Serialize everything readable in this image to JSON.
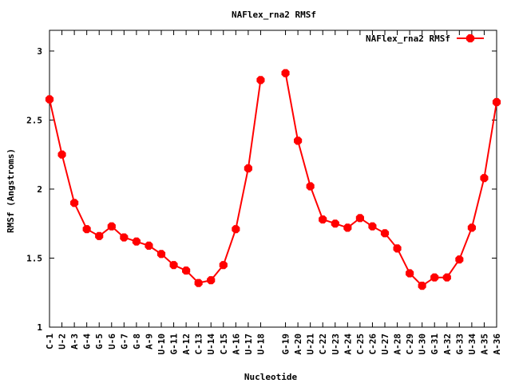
{
  "chart_data": {
    "type": "line",
    "title": "NAFlex_rna2 RMSf",
    "xlabel": "Nucleotide",
    "ylabel": "RMSf (Angstroms)",
    "ylim": [
      1,
      3.15
    ],
    "yticks": [
      "1",
      "1.5",
      "2",
      "2.5",
      "3"
    ],
    "legend": {
      "position": "top-right",
      "label": "NAFlex_rna2 RMSf"
    },
    "color": "#ff0000",
    "series": [
      {
        "name": "NAFlex_rna2 RMSf",
        "segments": [
          {
            "labels": [
              "C-1",
              "U-2",
              "A-3",
              "G-4",
              "G-5",
              "U-6",
              "G-7",
              "G-8",
              "A-9",
              "U-10",
              "G-11",
              "A-12",
              "C-13",
              "U-14",
              "C-15",
              "A-16",
              "U-17",
              "U-18"
            ],
            "x": [
              1,
              2,
              3,
              4,
              5,
              6,
              7,
              8,
              9,
              10,
              11,
              12,
              13,
              14,
              15,
              16,
              17,
              18
            ],
            "values": [
              2.65,
              2.25,
              1.9,
              1.71,
              1.66,
              1.73,
              1.65,
              1.62,
              1.59,
              1.53,
              1.45,
              1.41,
              1.32,
              1.34,
              1.45,
              1.71,
              2.15,
              2.79
            ]
          },
          {
            "labels": [
              "G-19",
              "A-20",
              "U-21",
              "C-22",
              "U-23",
              "A-24",
              "C-25",
              "C-26",
              "U-27",
              "A-28",
              "C-29",
              "U-30",
              "G-31",
              "A-32",
              "G-33",
              "U-34",
              "A-35",
              "A-36"
            ],
            "x": [
              20,
              21,
              22,
              23,
              24,
              25,
              26,
              27,
              28,
              29,
              30,
              31,
              32,
              33,
              34,
              35,
              36,
              37
            ],
            "values": [
              2.84,
              2.35,
              2.02,
              1.78,
              1.75,
              1.72,
              1.79,
              1.73,
              1.68,
              1.57,
              1.39,
              1.3,
              1.36,
              1.36,
              1.49,
              1.72,
              2.08,
              2.63
            ]
          }
        ]
      }
    ]
  }
}
